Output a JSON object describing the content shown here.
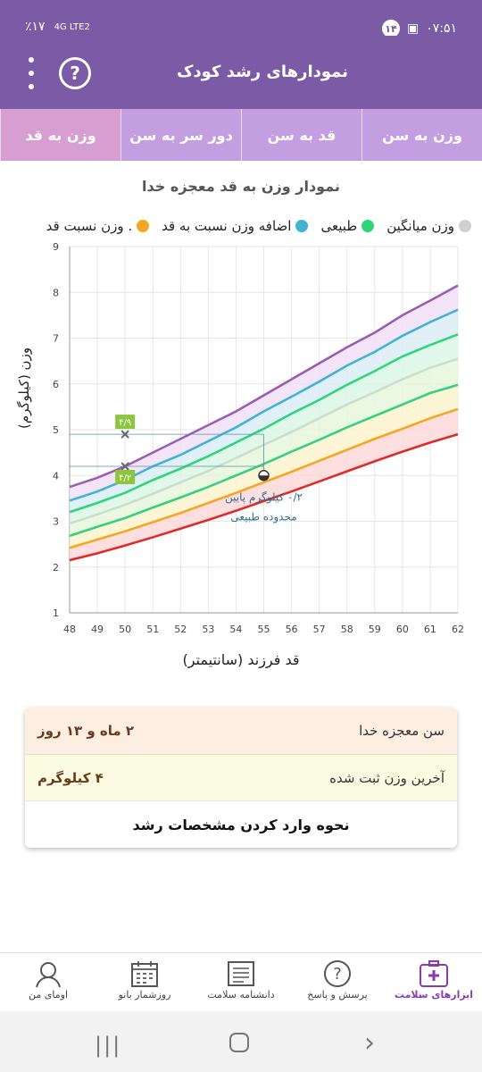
{
  "status": {
    "battery": "٪۱۷",
    "network": "4G LTE2",
    "notif_count": "۱۴",
    "time": "۰۷:۵۱"
  },
  "appbar": {
    "title": "نمودارهای رشد کودک"
  },
  "tabs": [
    "وزن به سن",
    "قد به سن",
    "دور سر به سن",
    "وزن به قد"
  ],
  "chart_title": "نمودار وزن به قد معجزه خدا",
  "legend": [
    {
      "label": "وزن میانگین",
      "color": "#d0d0d0"
    },
    {
      "label": "طبیعی",
      "color": "#2ed67a"
    },
    {
      "label": "اضافه وزن نسبت به قد",
      "color": "#3fb4d4"
    },
    {
      "label": ". وزن نسبت قد",
      "color": "#f5a623"
    }
  ],
  "chart_data": {
    "type": "line",
    "xlabel": "قد فرزند (سانتیمتر)",
    "ylabel": "وزن (کیلوگرم)",
    "xlim": [
      48,
      62
    ],
    "ylim": [
      1,
      9
    ],
    "x": [
      48,
      49,
      50,
      51,
      52,
      53,
      54,
      55,
      56,
      57,
      58,
      59,
      60,
      61,
      62
    ],
    "series": [
      {
        "color": "#9c5cb4",
        "values": [
          3.75,
          3.95,
          4.2,
          4.5,
          4.8,
          5.1,
          5.4,
          5.75,
          6.1,
          6.45,
          6.8,
          7.12,
          7.5,
          7.82,
          8.15
        ]
      },
      {
        "color": "#3fb4d4",
        "values": [
          3.45,
          3.65,
          3.9,
          4.2,
          4.45,
          4.75,
          5.05,
          5.4,
          5.72,
          6.05,
          6.4,
          6.7,
          7.05,
          7.35,
          7.62
        ]
      },
      {
        "color": "#2ed67a",
        "values": [
          3.2,
          3.4,
          3.62,
          3.9,
          4.15,
          4.42,
          4.72,
          5.02,
          5.35,
          5.65,
          5.98,
          6.28,
          6.6,
          6.85,
          7.08
        ]
      },
      {
        "color": "#c9dfc9",
        "values": [
          2.95,
          3.15,
          3.36,
          3.6,
          3.85,
          4.1,
          4.38,
          4.67,
          4.95,
          5.25,
          5.55,
          5.82,
          6.1,
          6.35,
          6.55
        ]
      },
      {
        "color": "#36d080",
        "values": [
          2.68,
          2.88,
          3.07,
          3.3,
          3.52,
          3.75,
          4.0,
          4.25,
          4.52,
          4.78,
          5.05,
          5.3,
          5.55,
          5.8,
          5.98
        ]
      },
      {
        "color": "#f5a623",
        "values": [
          2.42,
          2.6,
          2.78,
          2.98,
          3.18,
          3.4,
          3.62,
          3.85,
          4.08,
          4.32,
          4.56,
          4.8,
          5.02,
          5.25,
          5.45
        ]
      },
      {
        "color": "#e02a2a",
        "values": [
          2.15,
          2.3,
          2.47,
          2.65,
          2.84,
          3.03,
          3.23,
          3.44,
          3.65,
          3.87,
          4.09,
          4.31,
          4.52,
          4.72,
          4.9
        ]
      }
    ],
    "points": [
      {
        "x": 50,
        "y": 4.9,
        "label": "۴/۹",
        "marker": "x"
      },
      {
        "x": 50,
        "y": 4.2,
        "label": "۴/۲",
        "marker": "x"
      },
      {
        "x": 55,
        "y": 4.0,
        "label": "",
        "marker": "circle"
      }
    ],
    "annotation": {
      "line1": "۰/۲ کیلوگرم پایین",
      "line2": "محدوده طبیعی"
    }
  },
  "info": {
    "age_label": "سن معجزه خدا",
    "age_value": "۲ ماه و ۱۳ روز",
    "weight_label": "آخرین وزن ثبت شده",
    "weight_value": "۴ کیلوگرم",
    "guide": "نحوه وارد کردن مشخصات رشد"
  },
  "bottomnav": [
    "ابزارهای سلامت",
    "پرسش و پاسخ",
    "دانشنامه سلامت",
    "روزشمار بانو",
    "اومای من"
  ]
}
